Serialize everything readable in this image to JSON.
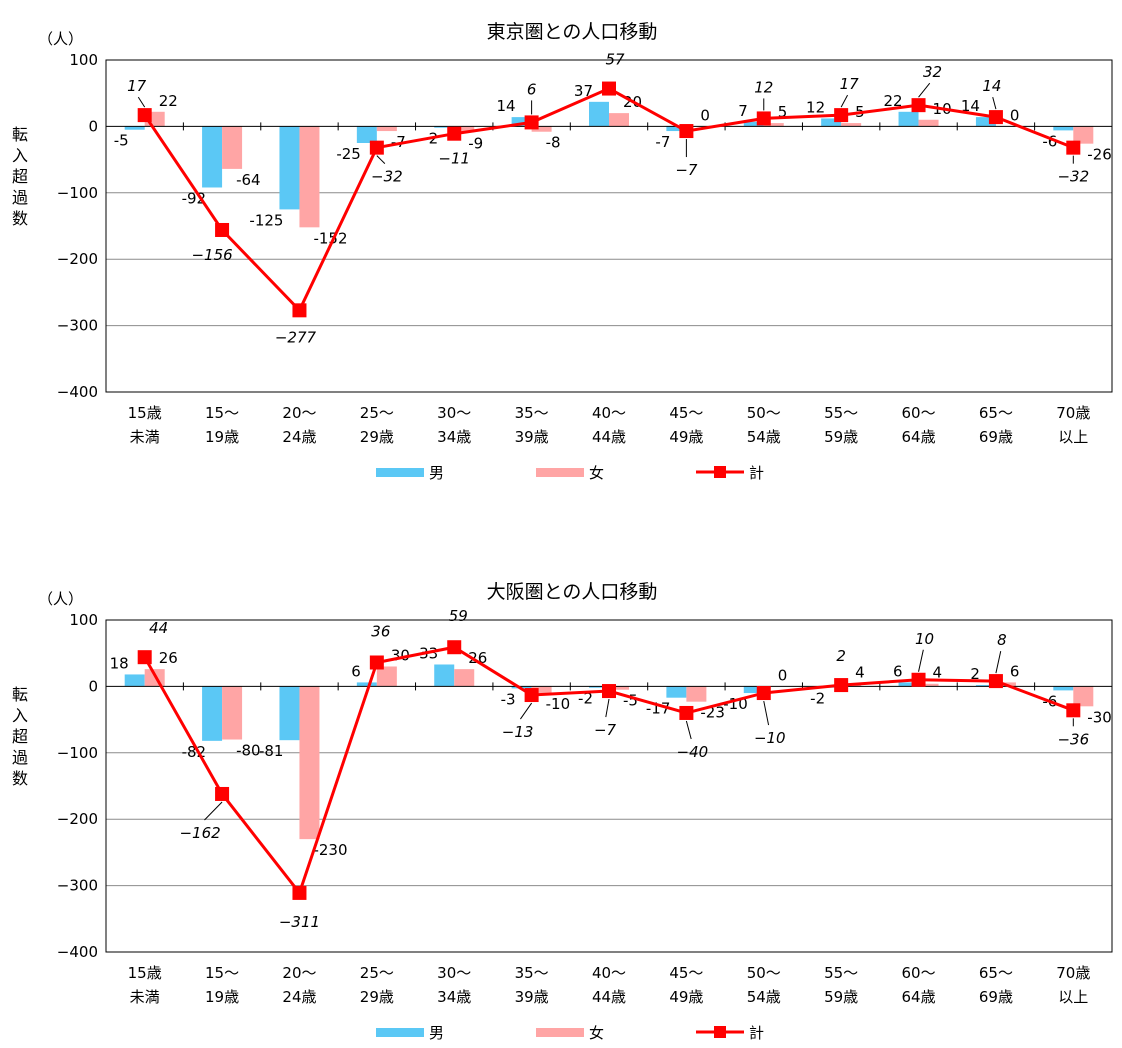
{
  "charts": [
    {
      "title": "東京圏との人口移動",
      "unit": "（人）",
      "ylabel": "転入超過数"
    },
    {
      "title": "大阪圏との人口移動",
      "unit": "（人）",
      "ylabel": "転入超過数"
    }
  ],
  "chart_data": [
    {
      "type": "bar",
      "title": "東京圏との人口移動",
      "ylabel": "転入超過数",
      "unit": "（人）",
      "categories": [
        [
          "15歳",
          "未満"
        ],
        [
          "15～",
          "19歳"
        ],
        [
          "20～",
          "24歳"
        ],
        [
          "25～",
          "29歳"
        ],
        [
          "30～",
          "34歳"
        ],
        [
          "35～",
          "39歳"
        ],
        [
          "40～",
          "44歳"
        ],
        [
          "45～",
          "49歳"
        ],
        [
          "50～",
          "54歳"
        ],
        [
          "55～",
          "59歳"
        ],
        [
          "60～",
          "64歳"
        ],
        [
          "65～",
          "69歳"
        ],
        [
          "70歳",
          "以上"
        ]
      ],
      "ylim": [
        -400,
        100
      ],
      "yticks": [
        100,
        0,
        -100,
        -200,
        -300,
        -400
      ],
      "grid": true,
      "legend_position": "bottom",
      "series": [
        {
          "name": "男",
          "type": "bar",
          "color": "#5BC8F5",
          "values": [
            -5,
            -92,
            -125,
            -25,
            -2,
            14,
            37,
            -7,
            7,
            12,
            22,
            14,
            -6
          ]
        },
        {
          "name": "女",
          "type": "bar",
          "color": "#FFA5A5",
          "values": [
            22,
            -64,
            -152,
            -7,
            -9,
            -8,
            20,
            0,
            5,
            5,
            10,
            0,
            -26
          ]
        },
        {
          "name": "計",
          "type": "line",
          "color": "#FF0000",
          "values": [
            17,
            -156,
            -277,
            -32,
            -11,
            6,
            57,
            -7,
            12,
            17,
            32,
            14,
            -32
          ]
        }
      ]
    },
    {
      "type": "bar",
      "title": "大阪圏との人口移動",
      "ylabel": "転入超過数",
      "unit": "（人）",
      "categories": [
        [
          "15歳",
          "未満"
        ],
        [
          "15～",
          "19歳"
        ],
        [
          "20～",
          "24歳"
        ],
        [
          "25～",
          "29歳"
        ],
        [
          "30～",
          "34歳"
        ],
        [
          "35～",
          "39歳"
        ],
        [
          "40～",
          "44歳"
        ],
        [
          "45～",
          "49歳"
        ],
        [
          "50～",
          "54歳"
        ],
        [
          "55～",
          "59歳"
        ],
        [
          "60～",
          "64歳"
        ],
        [
          "65～",
          "69歳"
        ],
        [
          "70歳",
          "以上"
        ]
      ],
      "ylim": [
        -400,
        100
      ],
      "yticks": [
        100,
        0,
        -100,
        -200,
        -300,
        -400
      ],
      "grid": true,
      "legend_position": "bottom",
      "series": [
        {
          "name": "男",
          "type": "bar",
          "color": "#5BC8F5",
          "values": [
            18,
            -82,
            -81,
            6,
            33,
            -3,
            -2,
            -17,
            -10,
            -2,
            6,
            2,
            -6
          ]
        },
        {
          "name": "女",
          "type": "bar",
          "color": "#FFA5A5",
          "values": [
            26,
            -80,
            -230,
            30,
            26,
            -10,
            -5,
            -23,
            0,
            4,
            4,
            6,
            -30
          ]
        },
        {
          "name": "計",
          "type": "line",
          "color": "#FF0000",
          "values": [
            44,
            -162,
            -311,
            36,
            59,
            -13,
            -7,
            -40,
            -10,
            2,
            10,
            8,
            -36
          ]
        }
      ]
    }
  ]
}
